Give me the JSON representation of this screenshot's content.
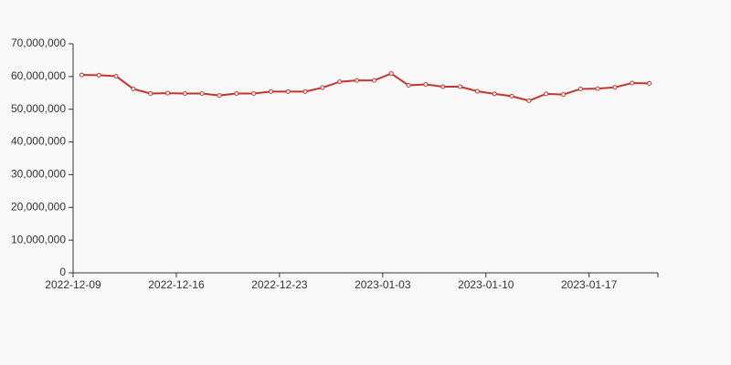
{
  "chart_data": {
    "type": "line",
    "categories": [
      "2022-12-09",
      null,
      null,
      null,
      null,
      null,
      "2022-12-16",
      null,
      null,
      null,
      null,
      null,
      "2022-12-23",
      null,
      null,
      null,
      null,
      null,
      "2023-01-03",
      null,
      null,
      null,
      null,
      null,
      "2023-01-10",
      null,
      null,
      null,
      null,
      null,
      "2023-01-17",
      null,
      null,
      null
    ],
    "series": [
      {
        "color": "#c23531",
        "values": [
          60500000,
          60400000,
          60100000,
          56200000,
          54800000,
          54900000,
          54800000,
          54800000,
          54200000,
          54800000,
          54800000,
          55400000,
          55400000,
          55400000,
          56600000,
          58400000,
          58800000,
          58800000,
          60900000,
          57300000,
          57600000,
          56900000,
          56900000,
          55500000,
          54700000,
          54000000,
          52600000,
          54700000,
          54500000,
          56200000,
          56300000,
          56700000,
          58000000,
          57900000
        ]
      }
    ],
    "ylim": [
      0,
      70000000
    ],
    "yticks": [
      0,
      {
        "value": 10000000,
        "label": "10,000,000"
      },
      {
        "value": 20000000,
        "label": "20,000,000"
      },
      {
        "value": 30000000,
        "label": "30,000,000"
      },
      {
        "value": 40000000,
        "label": "40,000,000"
      },
      {
        "value": 50000000,
        "label": "50,000,000"
      },
      {
        "value": 60000000,
        "label": "60,000,000"
      },
      {
        "value": 70000000,
        "label": "70,000,000"
      }
    ],
    "grid": false
  }
}
